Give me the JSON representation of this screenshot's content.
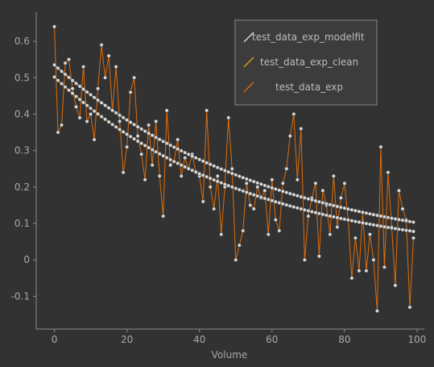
{
  "chart_data": {
    "type": "line",
    "title": "",
    "xlabel": "Volume",
    "ylabel": "",
    "xlim": [
      -5,
      102
    ],
    "ylim": [
      -0.19,
      0.68
    ],
    "xticks": [
      0,
      20,
      40,
      60,
      80,
      100
    ],
    "yticks": [
      -0.1,
      0,
      0.1,
      0.2,
      0.3,
      0.4,
      0.5,
      0.6
    ],
    "grid": false,
    "legend_position": "top-right",
    "colors": {
      "background": "#323232",
      "axis": "#8c8c8c",
      "text": "#a8a8a8",
      "noisy_line": "#e06d0a",
      "clean_line": "#d9a514",
      "fit_line": "#dcdcdc",
      "marker": "#d8d8d8"
    },
    "series": [
      {
        "name": "test_data_exp_modelfit",
        "style": "fit",
        "model": "exponential",
        "a": 0.535,
        "b": 0.0166,
        "x_from": 0,
        "x_to": 99
      },
      {
        "name": "test_data_exp_clean",
        "style": "clean",
        "model": "exponential",
        "a": 0.502,
        "b": 0.0188,
        "x_from": 0,
        "x_to": 99
      },
      {
        "name": "test_data_exp",
        "style": "noisy",
        "x": [
          0,
          1,
          2,
          3,
          4,
          5,
          6,
          7,
          8,
          9,
          10,
          11,
          12,
          13,
          14,
          15,
          16,
          17,
          18,
          19,
          20,
          21,
          22,
          23,
          24,
          25,
          26,
          27,
          28,
          29,
          30,
          31,
          32,
          33,
          34,
          35,
          36,
          37,
          38,
          39,
          40,
          41,
          42,
          43,
          44,
          45,
          46,
          47,
          48,
          49,
          50,
          51,
          52,
          53,
          54,
          55,
          56,
          57,
          58,
          59,
          60,
          61,
          62,
          63,
          64,
          65,
          66,
          67,
          68,
          69,
          70,
          71,
          72,
          73,
          74,
          75,
          76,
          77,
          78,
          79,
          80,
          81,
          82,
          83,
          84,
          85,
          86,
          87,
          88,
          89,
          90,
          91,
          92,
          93,
          94,
          95,
          96,
          97,
          98,
          99
        ],
        "values": [
          0.64,
          0.35,
          0.37,
          0.54,
          0.55,
          0.47,
          0.42,
          0.39,
          0.53,
          0.38,
          0.4,
          0.33,
          0.47,
          0.59,
          0.5,
          0.56,
          0.41,
          0.53,
          0.38,
          0.24,
          0.31,
          0.46,
          0.5,
          0.34,
          0.29,
          0.22,
          0.37,
          0.26,
          0.38,
          0.23,
          0.12,
          0.41,
          0.26,
          0.27,
          0.33,
          0.23,
          0.28,
          0.25,
          0.29,
          0.24,
          0.23,
          0.16,
          0.41,
          0.2,
          0.14,
          0.23,
          0.07,
          0.2,
          0.39,
          0.25,
          0.0,
          0.04,
          0.08,
          0.21,
          0.15,
          0.14,
          0.2,
          0.17,
          0.19,
          0.07,
          0.22,
          0.11,
          0.08,
          0.21,
          0.25,
          0.34,
          0.4,
          0.22,
          0.36,
          0.0,
          0.12,
          0.17,
          0.21,
          0.01,
          0.19,
          0.15,
          0.07,
          0.23,
          0.09,
          0.17,
          0.21,
          0.11,
          -0.05,
          0.06,
          -0.03,
          0.13,
          -0.03,
          0.07,
          0.0,
          -0.14,
          0.31,
          -0.02,
          0.24,
          0.09,
          -0.07,
          0.19,
          0.14,
          0.11,
          -0.13,
          0.06
        ]
      }
    ]
  }
}
